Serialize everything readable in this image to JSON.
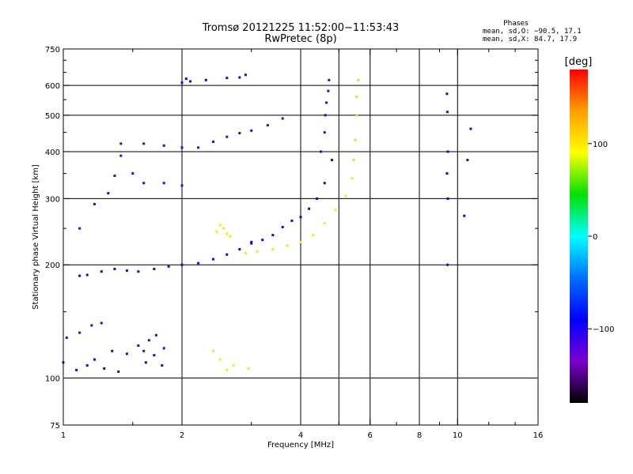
{
  "chart_data": {
    "type": "scatter",
    "title": "Tromsø 20121225 11:52:00−11:53:43",
    "subtitle": "RwPretec (8p)",
    "xlabel": "Frequency [MHz]",
    "ylabel": "Stationary phase Virtual Height [km]",
    "x_scale": "log",
    "y_scale": "log",
    "xlim": [
      1,
      16
    ],
    "ylim": [
      75,
      750
    ],
    "x_ticks": [
      1,
      2,
      4,
      6,
      8,
      10,
      16
    ],
    "x_tick_labels": [
      "1",
      "2",
      "4",
      "6",
      "8",
      "10",
      "16"
    ],
    "x_minor_ticks": [
      1.5,
      3,
      5,
      7,
      9,
      12,
      14
    ],
    "y_ticks": [
      75,
      100,
      200,
      300,
      400,
      500,
      600,
      750
    ],
    "y_tick_labels": [
      "75",
      "100",
      "200",
      "300",
      "400",
      "500",
      "600",
      "750"
    ],
    "y_minor_ticks": [
      150,
      250,
      350,
      450,
      550,
      650,
      700
    ],
    "grid_x": [
      2,
      4,
      5,
      6,
      8,
      10
    ],
    "grid_y": [
      100,
      200,
      300,
      400,
      500,
      600
    ],
    "phases": {
      "title": "Phases",
      "line_o": "mean, sd,O: −90.5, 17.1",
      "line_x": "mean, sd,X:  84.7, 17.9"
    },
    "colorbar": {
      "label": "[deg]",
      "range": [
        -180,
        180
      ],
      "ticks": [
        100,
        0,
        -100
      ],
      "tick_labels": [
        "100",
        "0",
        "−100"
      ],
      "colors": [
        "#ff0000",
        "#ffa000",
        "#ffff00",
        "#00e000",
        "#00ffff",
        "#0070ff",
        "#0000ff",
        "#7a00d0",
        "#000000"
      ]
    },
    "series": [
      {
        "trace": "E-low",
        "phase": -100,
        "x": [
          1.0,
          1.08,
          1.15,
          1.2,
          1.27,
          1.33,
          1.38,
          1.45,
          1.55,
          1.62,
          1.7,
          1.78
        ],
        "y": [
          110,
          105,
          108,
          112,
          106,
          118,
          104,
          116,
          122,
          110,
          115,
          108
        ]
      },
      {
        "trace": "E-mid",
        "phase": -110,
        "x": [
          1.02,
          1.1,
          1.18,
          1.25,
          1.6,
          1.65,
          1.72,
          1.8
        ],
        "y": [
          128,
          132,
          138,
          140,
          118,
          126,
          130,
          120
        ]
      },
      {
        "trace": "F1-base",
        "phase": -100,
        "x": [
          1.1,
          1.15,
          1.25,
          1.35,
          1.45,
          1.55,
          1.7,
          1.85,
          2.0,
          2.2,
          2.4,
          2.6,
          2.8,
          3.0
        ],
        "y": [
          187,
          188,
          192,
          195,
          193,
          192,
          195,
          198,
          200,
          202,
          207,
          213,
          220,
          228
        ]
      },
      {
        "trace": "F-ridge",
        "phase": -100,
        "x": [
          3.0,
          3.2,
          3.4,
          3.6,
          3.8,
          4.0,
          4.2,
          4.4,
          4.6,
          4.8
        ],
        "y": [
          230,
          233,
          240,
          252,
          262,
          268,
          282,
          300,
          330,
          380
        ]
      },
      {
        "trace": "F-vertical",
        "phase": -110,
        "x": [
          4.5,
          4.6,
          4.62,
          4.65,
          4.7,
          4.72
        ],
        "y": [
          400,
          450,
          500,
          540,
          580,
          620
        ]
      },
      {
        "trace": "F-upper",
        "phase": -110,
        "x": [
          1.4,
          1.6,
          1.8,
          2.0,
          2.2,
          2.4,
          2.6,
          2.8,
          3.0,
          3.3,
          3.6
        ],
        "y": [
          420,
          420,
          415,
          410,
          410,
          425,
          438,
          448,
          455,
          470,
          490
        ]
      },
      {
        "trace": "F-spur",
        "phase": -110,
        "x": [
          1.1,
          1.2,
          1.3,
          1.35,
          1.4,
          1.5,
          1.6,
          1.8,
          2.0
        ],
        "y": [
          250,
          290,
          310,
          345,
          390,
          350,
          330,
          330,
          325
        ]
      },
      {
        "trace": "X-ridge",
        "phase": 100,
        "x": [
          2.9,
          3.1,
          3.4,
          3.7,
          4.0,
          4.3,
          4.6,
          4.9,
          5.2,
          5.4
        ],
        "y": [
          215,
          217,
          220,
          225,
          230,
          240,
          258,
          280,
          305,
          340
        ]
      },
      {
        "trace": "X-vertical",
        "phase": 110,
        "x": [
          5.45,
          5.5,
          5.55,
          5.55,
          5.6
        ],
        "y": [
          380,
          430,
          500,
          560,
          620
        ]
      },
      {
        "trace": "X-bump",
        "phase": 100,
        "x": [
          2.45,
          2.5,
          2.55,
          2.6,
          2.65
        ],
        "y": [
          245,
          255,
          250,
          242,
          238
        ]
      },
      {
        "trace": "X-low",
        "phase": 100,
        "x": [
          2.4,
          2.5,
          2.6,
          2.7,
          2.95
        ],
        "y": [
          118,
          112,
          105,
          108,
          106
        ]
      },
      {
        "trace": "top-dots",
        "phase": -100,
        "x": [
          2.0,
          2.05,
          2.1,
          2.3,
          2.6,
          2.8,
          2.9
        ],
        "y": [
          610,
          625,
          615,
          620,
          628,
          630,
          640
        ]
      },
      {
        "trace": "isolated-9.4",
        "phase": -100,
        "x": [
          9.4,
          9.42,
          9.45,
          9.4,
          9.45,
          9.43
        ],
        "y": [
          570,
          510,
          400,
          350,
          300,
          200
        ]
      },
      {
        "trace": "isolated-10.8",
        "phase": -100,
        "x": [
          10.8,
          10.6,
          10.4
        ],
        "y": [
          460,
          380,
          270
        ]
      }
    ]
  }
}
